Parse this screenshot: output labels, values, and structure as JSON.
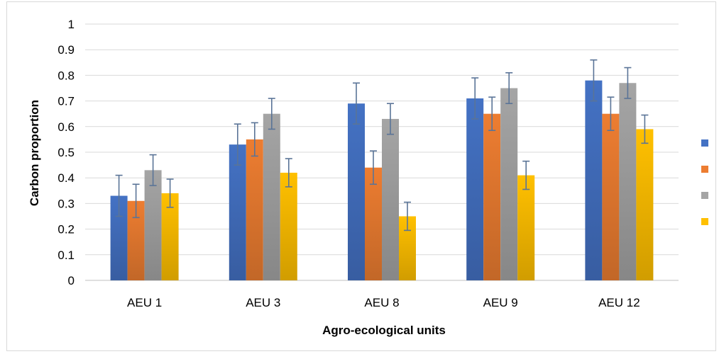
{
  "chart_data": {
    "type": "bar",
    "title": "",
    "xlabel": "Agro-ecological units",
    "ylabel": "Carbon proportion",
    "ylim": [
      0,
      1
    ],
    "yticks": [
      "0",
      "0.1",
      "0.2",
      "0.3",
      "0.4",
      "0.5",
      "0.6",
      "0.7",
      "0.8",
      "0.9",
      "1"
    ],
    "categories": [
      "AEU 1",
      "AEU 3",
      "AEU 8",
      "AEU 9",
      "AEU 12"
    ],
    "grid": true,
    "legend_position": "right",
    "error_bars": true,
    "series": [
      {
        "name": "",
        "color": "#4472c4",
        "values": [
          0.33,
          0.53,
          0.69,
          0.71,
          0.78
        ],
        "errors": [
          0.08,
          0.08,
          0.08,
          0.08,
          0.08
        ]
      },
      {
        "name": "",
        "color": "#ed7d31",
        "values": [
          0.31,
          0.55,
          0.44,
          0.65,
          0.65
        ],
        "errors": [
          0.065,
          0.065,
          0.065,
          0.065,
          0.065
        ]
      },
      {
        "name": "",
        "color": "#a5a5a5",
        "values": [
          0.43,
          0.65,
          0.63,
          0.75,
          0.77
        ],
        "errors": [
          0.06,
          0.06,
          0.06,
          0.06,
          0.06
        ]
      },
      {
        "name": "",
        "color": "#ffc000",
        "values": [
          0.34,
          0.42,
          0.25,
          0.41,
          0.59
        ],
        "errors": [
          0.055,
          0.055,
          0.055,
          0.055,
          0.055
        ]
      }
    ],
    "error_bar_color": "#5a7497"
  }
}
